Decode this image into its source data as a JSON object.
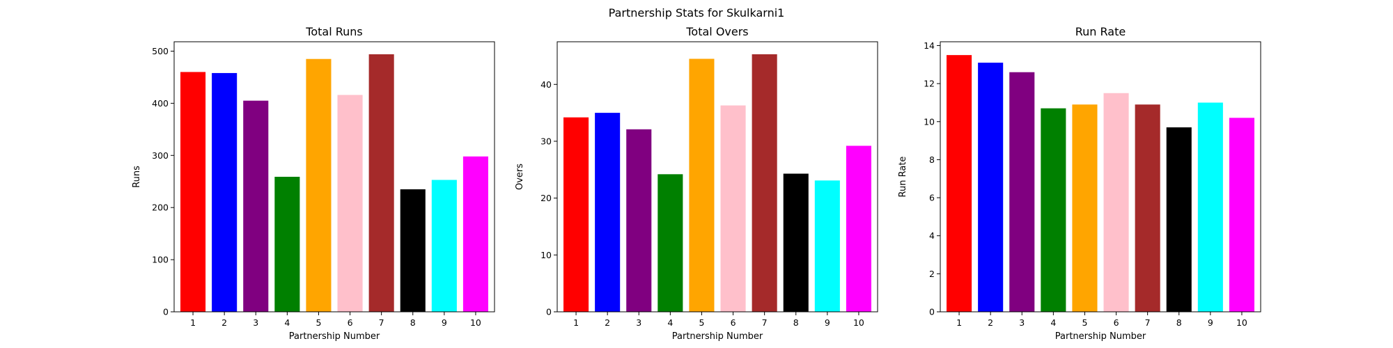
{
  "figure": {
    "title": "Partnership Stats for Skulkarni1"
  },
  "chart_data": [
    {
      "type": "bar",
      "title": "Total Runs",
      "xlabel": "Partnership Number",
      "ylabel": "Runs",
      "categories": [
        "1",
        "2",
        "3",
        "4",
        "5",
        "6",
        "7",
        "8",
        "9",
        "10"
      ],
      "values": [
        460,
        458,
        405,
        259,
        485,
        416,
        494,
        235,
        253,
        298
      ],
      "ylim": [
        0,
        518
      ],
      "yticks": [
        0,
        100,
        200,
        300,
        400,
        500
      ],
      "colors": [
        "#ff0000",
        "#0000ff",
        "#800080",
        "#008000",
        "#ffa500",
        "#ffc0cb",
        "#a52a2a",
        "#000000",
        "#00ffff",
        "#ff00ff"
      ],
      "grid": false
    },
    {
      "type": "bar",
      "title": "Total Overs",
      "xlabel": "Partnership Number",
      "ylabel": "Overs",
      "categories": [
        "1",
        "2",
        "3",
        "4",
        "5",
        "6",
        "7",
        "8",
        "9",
        "10"
      ],
      "values": [
        34.2,
        35.0,
        32.1,
        24.2,
        44.5,
        36.3,
        45.3,
        24.3,
        23.1,
        29.2
      ],
      "ylim": [
        0,
        47.5
      ],
      "yticks": [
        0,
        10,
        20,
        30,
        40
      ],
      "colors": [
        "#ff0000",
        "#0000ff",
        "#800080",
        "#008000",
        "#ffa500",
        "#ffc0cb",
        "#a52a2a",
        "#000000",
        "#00ffff",
        "#ff00ff"
      ],
      "grid": false
    },
    {
      "type": "bar",
      "title": "Run Rate",
      "xlabel": "Partnership Number",
      "ylabel": "Run Rate",
      "categories": [
        "1",
        "2",
        "3",
        "4",
        "5",
        "6",
        "7",
        "8",
        "9",
        "10"
      ],
      "values": [
        13.5,
        13.1,
        12.6,
        10.7,
        10.9,
        11.5,
        10.9,
        9.7,
        11.0,
        10.2
      ],
      "ylim": [
        0,
        14.2
      ],
      "yticks": [
        0,
        2,
        4,
        6,
        8,
        10,
        12,
        14
      ],
      "colors": [
        "#ff0000",
        "#0000ff",
        "#800080",
        "#008000",
        "#ffa500",
        "#ffc0cb",
        "#a52a2a",
        "#000000",
        "#00ffff",
        "#ff00ff"
      ],
      "grid": false
    }
  ]
}
